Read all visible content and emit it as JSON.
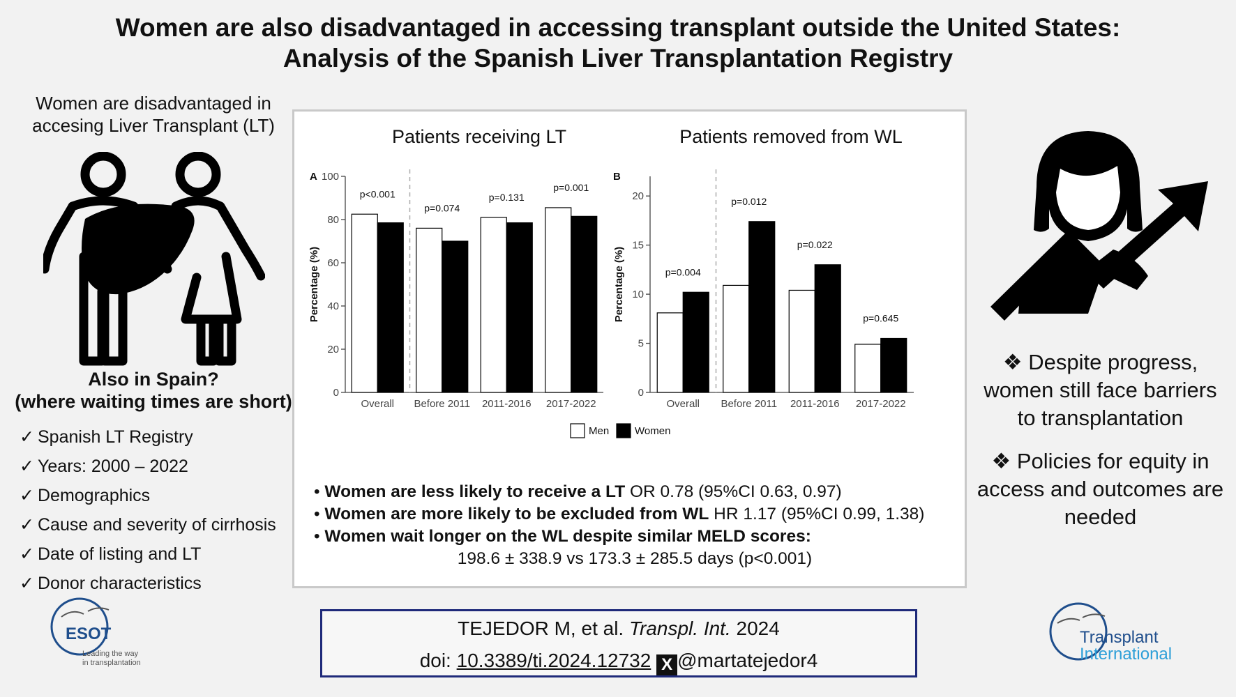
{
  "title": {
    "line1": "Women are also disadvantaged in accessing transplant outside the United States:",
    "line2": "Analysis of the Spanish Liver Transplantation Registry"
  },
  "left": {
    "intro_line1": "Women are disadvantaged in",
    "intro_line2": "accesing Liver Transplant (LT)",
    "question_line1": "Also in Spain?",
    "question_line2": "(where waiting times are short)",
    "checklist": [
      "Spanish LT Registry",
      "Years: 2000 – 2022",
      "Demographics",
      "Cause and severity of cirrhosis",
      "Date of listing and LT",
      "Donor characteristics"
    ],
    "check_mark": "✓"
  },
  "findings": {
    "bullet": "•",
    "f1_bold": "Women are less likely to receive a LT",
    "f1_rest": " OR 0.78 (95%CI 0.63, 0.97)",
    "f2_bold": "Women are more likely to be excluded from WL",
    "f2_rest": " HR 1.17 (95%CI 0.99, 1.38)",
    "f3_bold": "Women wait longer on the WL despite similar MELD scores:",
    "f3_line2": "198.6 ± 338.9 vs 173.3 ± 285.5 days (p<0.001)"
  },
  "right": {
    "bullet_symbol": "❖",
    "point1": "Despite progress, women still face barriers to transplantation",
    "point2": "Policies for equity in access and outcomes are needed"
  },
  "citation": {
    "authors": "TEJEDOR M, et al. ",
    "journal": "Transpl. Int.",
    "year": " 2024",
    "doi_prefix": "doi: ",
    "doi": "10.3389/ti.2024.12732",
    "x_glyph": "X",
    "handle": "@martatejedor4"
  },
  "logos": {
    "esot_name": "ESOT",
    "esot_tag1": "Leading the way",
    "esot_tag2": "in transplantation",
    "ti_line1": "Transplant",
    "ti_line2": "International"
  },
  "colors": {
    "men_fill": "#ffffff",
    "women_fill": "#000000",
    "citation_border": "#1f2a7a",
    "ti_blue": "#2d6fb4",
    "esot_blue": "#1f4e8c"
  },
  "icons": [
    "people-with-liver-icon",
    "businesswoman-rising-arrow-icon",
    "x-logo-icon"
  ],
  "chart_data": [
    {
      "type": "bar",
      "panel": "A",
      "title": "Patients receiving LT",
      "ylabel": "Percentage (%)",
      "ylim": [
        0,
        100
      ],
      "yticks": [
        0,
        20,
        40,
        60,
        80,
        100
      ],
      "categories": [
        "Overall",
        "Before 2011",
        "2011-2016",
        "2017-2022"
      ],
      "p_values": [
        "p<0.001",
        "p=0.074",
        "p=0.131",
        "p=0.001"
      ],
      "series": [
        {
          "name": "Men",
          "values": [
            82.5,
            76,
            81,
            85.5
          ]
        },
        {
          "name": "Women",
          "values": [
            78.5,
            70,
            78.5,
            81.5
          ]
        }
      ],
      "separator_after_first": true,
      "grid": false
    },
    {
      "type": "bar",
      "panel": "B",
      "title": "Patients removed from WL",
      "ylabel": "Percentage (%)",
      "ylim": [
        0,
        22
      ],
      "yticks": [
        0,
        5,
        10,
        15,
        20
      ],
      "categories": [
        "Overall",
        "Before 2011",
        "2011-2016",
        "2017-2022"
      ],
      "p_values": [
        "p=0.004",
        "p=0.012",
        "p=0.022",
        "p=0.645"
      ],
      "series": [
        {
          "name": "Men",
          "values": [
            8.1,
            10.9,
            10.4,
            4.9
          ]
        },
        {
          "name": "Women",
          "values": [
            10.2,
            17.4,
            13.0,
            5.5
          ]
        }
      ],
      "separator_after_first": true,
      "grid": false
    }
  ],
  "legend": {
    "placement": "bottom-center",
    "entries": [
      "Men",
      "Women"
    ]
  }
}
